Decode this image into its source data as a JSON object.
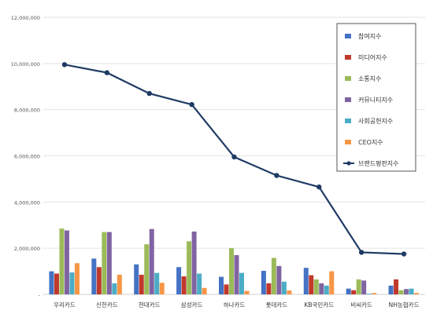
{
  "chart_data": {
    "type": "bar",
    "categories": [
      "우리카드",
      "신한카드",
      "현대카드",
      "삼성카드",
      "하나카드",
      "롯데카드",
      "KB국민카드",
      "비씨카드",
      "NH농협카드"
    ],
    "ylim": [
      0,
      12000000
    ],
    "yticks": [
      0,
      2000000,
      4000000,
      6000000,
      8000000,
      10000000,
      12000000
    ],
    "ytick_labels": [
      "-",
      "2,000,000",
      "4,000,000",
      "6,000,000",
      "8,000,000",
      "10,000,000",
      "12,000,000"
    ],
    "grid": true,
    "legend_position": "top-right",
    "series": [
      {
        "name": "참여지수",
        "color": "#4472c4",
        "kind": "bar",
        "values": [
          1000000,
          1550000,
          1300000,
          1180000,
          760000,
          1020000,
          1150000,
          250000,
          380000
        ]
      },
      {
        "name": "미디어지수",
        "color": "#c0392b",
        "kind": "bar",
        "values": [
          900000,
          1180000,
          850000,
          780000,
          430000,
          480000,
          830000,
          180000,
          650000
        ]
      },
      {
        "name": "소통지수",
        "color": "#9bbb59",
        "kind": "bar",
        "values": [
          2850000,
          2700000,
          2170000,
          2300000,
          2000000,
          1580000,
          650000,
          650000,
          180000
        ]
      },
      {
        "name": "커뮤니티지수",
        "color": "#8064a2",
        "kind": "bar",
        "values": [
          2770000,
          2700000,
          2830000,
          2720000,
          1700000,
          1230000,
          480000,
          600000,
          230000
        ]
      },
      {
        "name": "사회공헌지수",
        "color": "#4bacc6",
        "kind": "bar",
        "values": [
          950000,
          480000,
          930000,
          900000,
          930000,
          550000,
          380000,
          30000,
          250000
        ]
      },
      {
        "name": "CEO지수",
        "color": "#f79646",
        "kind": "bar",
        "values": [
          1350000,
          850000,
          500000,
          280000,
          150000,
          170000,
          1000000,
          60000,
          60000
        ]
      },
      {
        "name": "브랜드평판지수",
        "color": "#1f3b64",
        "kind": "line",
        "values": [
          9950000,
          9600000,
          8700000,
          8220000,
          5950000,
          5150000,
          4650000,
          1820000,
          1750000
        ]
      }
    ]
  }
}
